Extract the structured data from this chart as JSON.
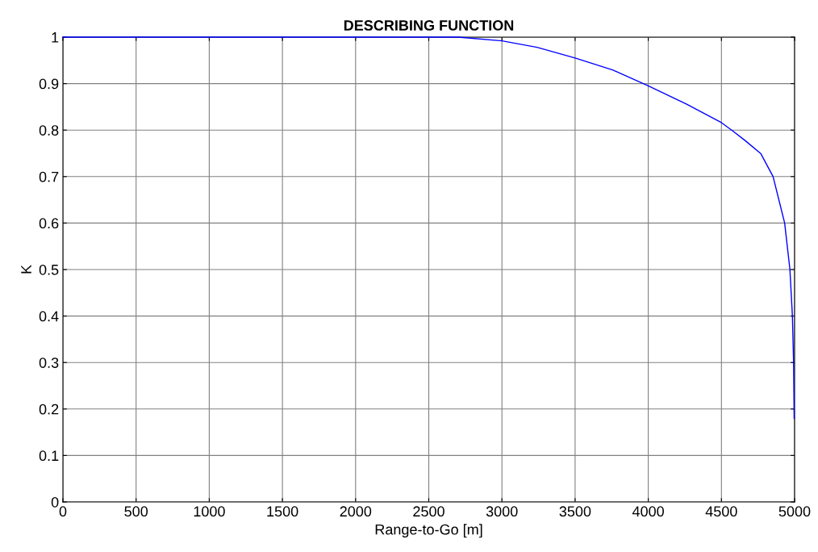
{
  "chart_data": {
    "type": "line",
    "title": "DESCRIBING FUNCTION",
    "xlabel": "Range-to-Go [m]",
    "ylabel": "K",
    "x": [
      0,
      2700,
      3000,
      3240,
      3500,
      3760,
      4000,
      4260,
      4500,
      4570,
      4660,
      4770,
      4853,
      4932,
      4968,
      4985,
      4993,
      4997
    ],
    "series": [
      {
        "color": "#0000ff",
        "values": [
          1,
          1,
          0.992,
          0.978,
          0.955,
          0.929,
          0.895,
          0.856,
          0.816,
          0.8,
          0.778,
          0.749,
          0.7,
          0.6,
          0.5,
          0.4,
          0.3,
          0.18
        ]
      }
    ],
    "xlim": [
      0,
      5000
    ],
    "xticks": [
      0,
      500,
      1000,
      1500,
      2000,
      2500,
      3000,
      3500,
      4000,
      4500,
      5000
    ],
    "ylim": [
      0,
      1
    ],
    "yticks": [
      0,
      0.1,
      0.2,
      0.3,
      0.4,
      0.5,
      0.6,
      0.7,
      0.8,
      0.9,
      1
    ],
    "grid": true
  }
}
